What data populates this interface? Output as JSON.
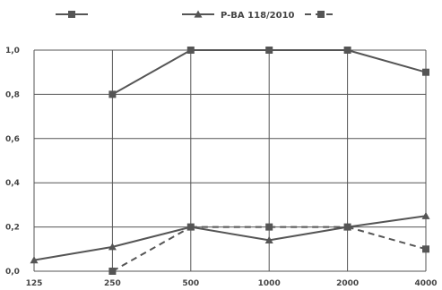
{
  "chart_data": {
    "type": "line",
    "categories": [
      "125",
      "250",
      "500",
      "1000",
      "2000",
      "4000"
    ],
    "ylim": [
      0,
      1.0
    ],
    "y_ticks": [
      "0,0",
      "0,2",
      "0,4",
      "0,6",
      "0,8",
      "1,0"
    ],
    "grid": true,
    "legend_position": "top",
    "series": [
      {
        "name": "",
        "marker": "square",
        "line_style": "solid",
        "color": "#555555",
        "values": [
          null,
          0.8,
          1.0,
          1.0,
          1.0,
          0.9
        ]
      },
      {
        "name": "P-BA 118/2010",
        "marker": "triangle",
        "line_style": "solid",
        "color": "#555555",
        "values": [
          0.05,
          0.11,
          0.2,
          0.14,
          0.2,
          0.25
        ]
      },
      {
        "name": "",
        "marker": "square",
        "line_style": "dashed",
        "color": "#555555",
        "values": [
          null,
          0.0,
          0.2,
          0.2,
          0.2,
          0.1
        ]
      }
    ]
  }
}
